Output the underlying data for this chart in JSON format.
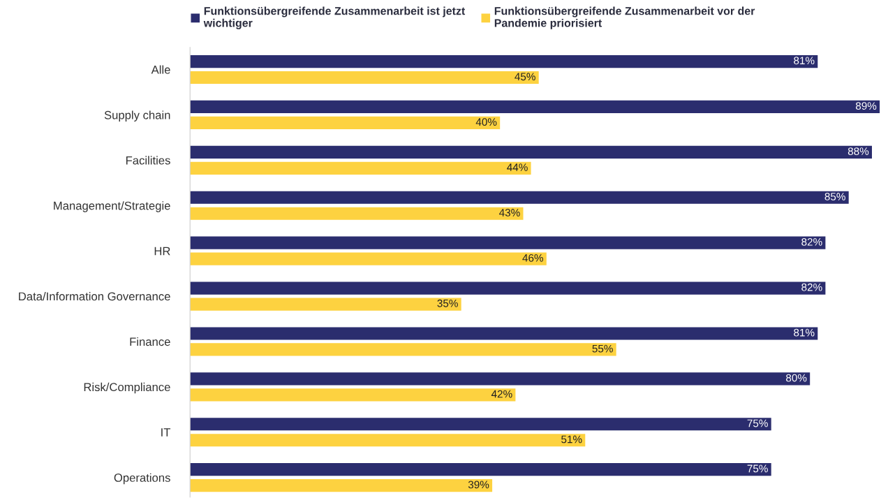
{
  "chart_data": {
    "type": "bar",
    "orientation": "horizontal",
    "categories": [
      "Alle",
      "Supply chain",
      "Facilities",
      "Management/Strategie",
      "HR",
      "Data/Information Governance",
      "Finance",
      "Risk/Compliance",
      "IT",
      "Operations"
    ],
    "series": [
      {
        "name": "Funktionsübergreifende Zusammenarbeit ist jetzt\nwichtiger",
        "color": "#2b2d6e",
        "values": [
          81,
          89,
          88,
          85,
          82,
          82,
          81,
          80,
          75,
          75
        ],
        "value_labels": [
          "81%",
          "89%",
          "88%",
          "85%",
          "82%",
          "82%",
          "81%",
          "80%",
          "75%",
          "75%"
        ]
      },
      {
        "name": "Funktionsübergreifende Zusammenarbeit vor der\nPandemie priorisiert",
        "color": "#fdd240",
        "values": [
          45,
          40,
          44,
          43,
          46,
          35,
          55,
          42,
          51,
          39
        ],
        "value_labels": [
          "45%",
          "40%",
          "44%",
          "43%",
          "46%",
          "35%",
          "55%",
          "42%",
          "51%",
          "39%"
        ]
      }
    ],
    "xlim": [
      0,
      89.5
    ],
    "tick_labels": "y",
    "legend": "top",
    "grid": false
  }
}
